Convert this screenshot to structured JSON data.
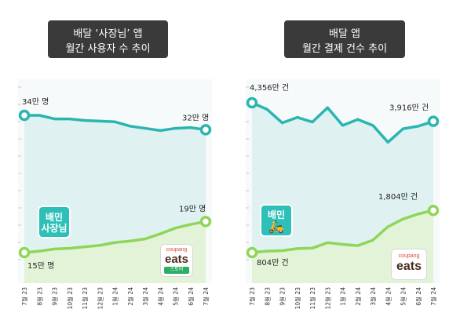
{
  "colors": {
    "teal": "#2bb5b0",
    "teal_fill": "#dff2f1",
    "green": "#8ed65a",
    "green_fill": "#e3f3d8",
    "title_bg": "#3a3a3a"
  },
  "chart_data": [
    {
      "type": "line",
      "title_line1": "배달 ‘사장님’ 앱",
      "title_line2": "월간 사용자 수 추이",
      "x": [
        "7월 23",
        "8월 23",
        "9월 23",
        "10월 23",
        "11월 23",
        "12월 23",
        "1월 24",
        "2월 24",
        "3월 24",
        "4월 24",
        "5월 24",
        "6월 24",
        "7월 24"
      ],
      "ylim": [
        0,
        40
      ],
      "series": [
        {
          "name": "배민 사장님",
          "values": [
            34,
            34,
            33.5,
            33.5,
            33.3,
            33.2,
            33.1,
            32.5,
            32.2,
            31.9,
            32.2,
            32.3,
            32
          ],
          "start_label": "34만 명",
          "end_label": "32만 명"
        },
        {
          "name": "쿠팡이츠 스토어",
          "values": [
            15,
            15.2,
            15.5,
            15.6,
            15.8,
            16.0,
            16.4,
            16.6,
            16.9,
            17.6,
            18.4,
            18.9,
            19.3
          ],
          "start_label": "15만 명",
          "end_label": "19만 명"
        }
      ]
    },
    {
      "type": "line",
      "title_line1": "배달 앱",
      "title_line2": "월간 결제 건수 추이",
      "x": [
        "7월 23",
        "8월 23",
        "9월 23",
        "10월 23",
        "11월 23",
        "12월 23",
        "1월 24",
        "2월 24",
        "3월 24",
        "4월 24",
        "5월 24",
        "6월 24",
        "7월 24"
      ],
      "ylim": [
        0,
        5000
      ],
      "series": [
        {
          "name": "배민",
          "values": [
            4356,
            4200,
            3880,
            4010,
            3900,
            4240,
            3820,
            3960,
            3820,
            3420,
            3740,
            3800,
            3916
          ],
          "start_label": "4,356만 건",
          "end_label": "3,916만 건"
        },
        {
          "name": "쿠팡이츠",
          "values": [
            804,
            840,
            850,
            900,
            910,
            1040,
            1000,
            970,
            1100,
            1420,
            1600,
            1720,
            1804
          ],
          "start_label": "804만 건",
          "end_label": "1,804만 건"
        }
      ]
    }
  ],
  "logos": {
    "baemin_owner_line1": "배민",
    "baemin_owner_line2": "사장님",
    "coupang_store_top": "coupang",
    "coupang_store_main": "eats",
    "coupang_store_badge": "스토어",
    "baemin_line": "배민",
    "coupang_top": "coupang",
    "coupang_main": "eats"
  }
}
